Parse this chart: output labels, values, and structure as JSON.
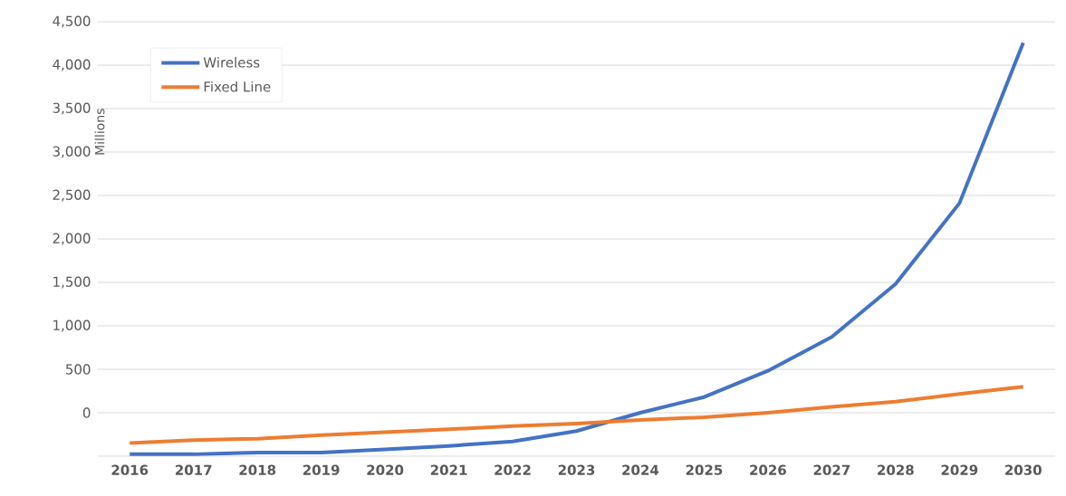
{
  "chart_data": {
    "type": "line",
    "ylabel": "Millions",
    "categories": [
      "2016",
      "2017",
      "2018",
      "2019",
      "2020",
      "2021",
      "2022",
      "2023",
      "2024",
      "2025",
      "2026",
      "2027",
      "2028",
      "2029",
      "2030"
    ],
    "series": [
      {
        "name": "Wireless",
        "color": "#4472c4",
        "values": [
          -478,
          -478,
          -458,
          -458,
          -422,
          -382,
          -330,
          -211,
          0,
          180,
          482,
          872,
          1482,
          2410,
          4257
        ]
      },
      {
        "name": "Fixed Line",
        "color": "#ed7d31",
        "values": [
          -350,
          -315,
          -299,
          -259,
          -223,
          -191,
          -155,
          -124,
          -84,
          -52,
          0,
          68,
          128,
          216,
          300
        ]
      }
    ],
    "ylim": [
      -500,
      4500
    ],
    "yticks": [
      {
        "value": -500,
        "label": null
      },
      0,
      {
        "value": 500,
        "label": "500"
      },
      {
        "value": 1000,
        "label": "1,000"
      },
      {
        "value": 1500,
        "label": "1,500"
      },
      {
        "value": 2000,
        "label": "2,000"
      },
      {
        "value": 2500,
        "label": "2,500"
      },
      {
        "value": 3000,
        "label": "3,000"
      },
      {
        "value": 3500,
        "label": "3,500"
      },
      {
        "value": 4000,
        "label": "4,000"
      },
      {
        "value": 4500,
        "label": "4,500"
      }
    ],
    "grid": "y",
    "legend": "top left",
    "marker": "none",
    "line_style": "solid"
  }
}
